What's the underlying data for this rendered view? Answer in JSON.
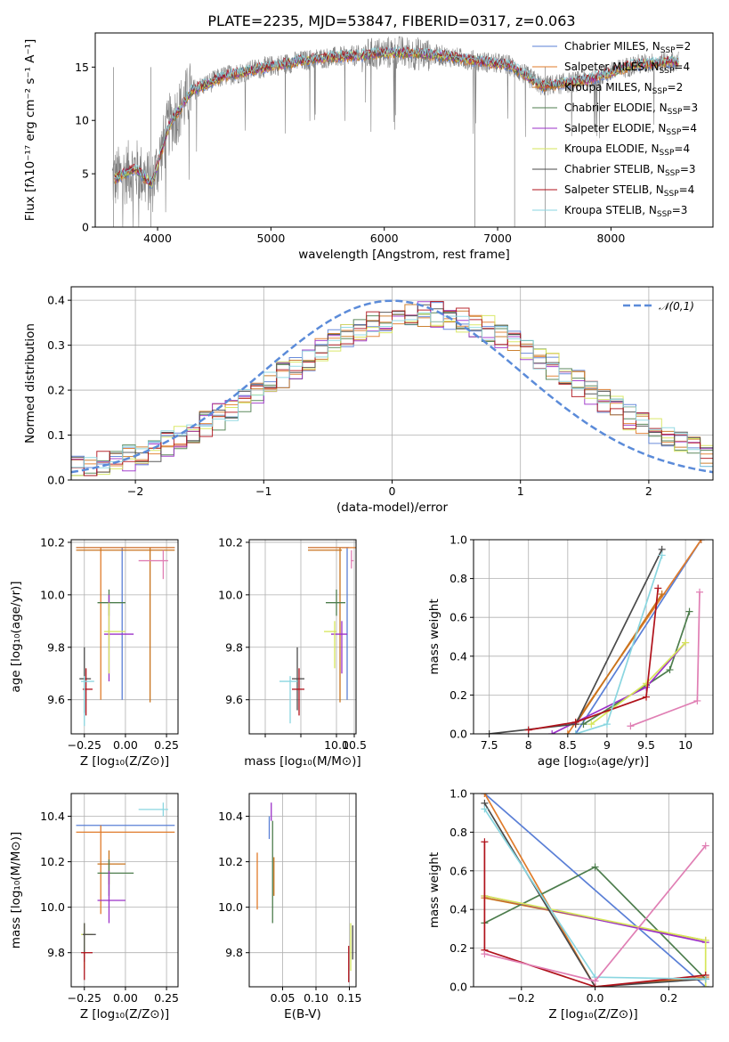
{
  "figure": {
    "title": "PLATE=2235, MJD=53847, FIBERID=0317, z=0.063"
  },
  "models": [
    {
      "name": "Chabrier MILES",
      "nssp": "2",
      "color": "#5a7fd6"
    },
    {
      "name": "Salpeter MILES",
      "nssp": "4",
      "color": "#e07b2a"
    },
    {
      "name": "Kroupa MILES",
      "nssp": "2",
      "color": "#c8731c"
    },
    {
      "name": "Chabrier ELODIE",
      "nssp": "3",
      "color": "#4d7d4d"
    },
    {
      "name": "Salpeter ELODIE",
      "nssp": "4",
      "color": "#9b30c8"
    },
    {
      "name": "Kroupa ELODIE",
      "nssp": "4",
      "color": "#d6e65a"
    },
    {
      "name": "Chabrier STELIB",
      "nssp": "3",
      "color": "#4a4a4a"
    },
    {
      "name": "Salpeter STELIB",
      "nssp": "4",
      "color": "#b0121b"
    },
    {
      "name": "Kroupa STELIB",
      "nssp": "3",
      "color": "#8ad6e0"
    }
  ],
  "chart_data": [
    {
      "id": "spectrum",
      "type": "line",
      "xlabel": "wavelength [Angstrom, rest frame]",
      "ylabel": "Flux [fλ10⁻¹⁷ erg cm⁻² s⁻¹ A⁻¹]",
      "xlim": [
        3450,
        8900
      ],
      "ylim": [
        0,
        18.2
      ],
      "xticks": [
        4000,
        5000,
        6000,
        7000,
        8000
      ],
      "yticks": [
        0,
        5,
        10,
        15
      ],
      "data_color": "#808080",
      "model_anchor": {
        "x": [
          3620,
          3800,
          3950,
          4100,
          4300,
          4600,
          5000,
          5400,
          5800,
          6100,
          6500,
          6800,
          7100,
          7400,
          7800,
          8200,
          8500
        ],
        "y": [
          4.5,
          5.5,
          4.0,
          9.5,
          12.8,
          14.2,
          15.1,
          15.8,
          16.1,
          16.4,
          16.1,
          15.6,
          15.2,
          13.2,
          13.8,
          15.2,
          15.5
        ]
      }
    },
    {
      "id": "residuals",
      "type": "histogram",
      "xlabel": "(data-model)/error",
      "ylabel": "Normed distribution",
      "xlim": [
        -2.5,
        2.5
      ],
      "ylim": [
        0,
        0.43
      ],
      "xticks": [
        -2,
        -1,
        0,
        1,
        2
      ],
      "yticks": [
        0.0,
        0.1,
        0.2,
        0.3,
        0.4
      ],
      "reference": {
        "label": "𝒩(0,1)",
        "mu": 0,
        "sigma": 1,
        "color": "#5b8bd9"
      }
    },
    {
      "id": "age_vs_z",
      "type": "errorbar",
      "xlabel": "Z [log₁₀(Z/Z⊙)]",
      "ylabel": "age  [log₁₀(age/yr)]",
      "xlim": [
        -0.33,
        0.32
      ],
      "ylim": [
        9.47,
        10.21
      ],
      "xticks": [
        -0.25,
        0.0,
        0.25
      ],
      "xticklabels": [
        "−0.25",
        "0.00",
        "0.25"
      ],
      "yticks": [
        9.6,
        9.8,
        10.0,
        10.2
      ],
      "points": [
        {
          "x": -0.02,
          "xlo": -0.3,
          "xhi": 0.3,
          "y": 10.18,
          "ylo": 9.6,
          "yhi": 10.18
        },
        {
          "x": -0.15,
          "xlo": -0.3,
          "xhi": 0.3,
          "y": 10.18,
          "ylo": 9.6,
          "yhi": 10.18
        },
        {
          "x": 0.15,
          "xlo": -0.3,
          "xhi": 0.3,
          "y": 10.17,
          "ylo": 9.59,
          "yhi": 10.18
        },
        {
          "x": -0.1,
          "xlo": -0.17,
          "xhi": 0.0,
          "y": 9.97,
          "ylo": 9.92,
          "yhi": 10.02
        },
        {
          "x": -0.1,
          "xlo": -0.13,
          "xhi": 0.05,
          "y": 9.85,
          "ylo": 9.67,
          "yhi": 10.0
        },
        {
          "x": -0.1,
          "xlo": -0.13,
          "xhi": 0.0,
          "y": 9.86,
          "ylo": 9.7,
          "yhi": 9.97
        },
        {
          "x": -0.25,
          "xlo": -0.28,
          "xhi": -0.21,
          "y": 9.68,
          "ylo": 9.55,
          "yhi": 9.8
        },
        {
          "x": -0.24,
          "xlo": -0.26,
          "xhi": -0.2,
          "y": 9.64,
          "ylo": 9.54,
          "yhi": 9.72
        },
        {
          "x": -0.25,
          "xlo": -0.27,
          "xhi": -0.19,
          "y": 9.67,
          "ylo": 9.5,
          "yhi": 9.69
        },
        {
          "x": 0.23,
          "xlo": 0.08,
          "xhi": 0.26,
          "y": 10.13,
          "ylo": 10.06,
          "yhi": 10.17
        }
      ]
    },
    {
      "id": "age_vs_mass",
      "type": "errorbar",
      "xlabel": "mass [log₁₀(M/M⊙)]",
      "ylabel": "",
      "xlim": [
        7.55,
        10.55
      ],
      "ylim": [
        9.47,
        10.21
      ],
      "xticks": [
        8.0,
        9.0,
        10.0,
        10.5
      ],
      "xticklabels": [
        "",
        "",
        "10.0",
        "10.5"
      ],
      "yticks": [
        9.6,
        9.8,
        10.0,
        10.2
      ],
      "points": [
        {
          "x": 10.3,
          "xlo": 9.2,
          "xhi": 10.35,
          "y": 10.18,
          "ylo": 9.6,
          "yhi": 10.18
        },
        {
          "x": 10.6,
          "xlo": 9.2,
          "xhi": 10.65,
          "y": 10.18,
          "ylo": 9.6,
          "yhi": 10.18
        },
        {
          "x": 10.1,
          "xlo": 9.2,
          "xhi": 10.15,
          "y": 10.17,
          "ylo": 9.59,
          "yhi": 10.18
        },
        {
          "x": 10.0,
          "xlo": 9.7,
          "xhi": 10.25,
          "y": 9.97,
          "ylo": 9.92,
          "yhi": 10.02
        },
        {
          "x": 10.15,
          "xlo": 9.85,
          "xhi": 10.3,
          "y": 9.85,
          "ylo": 9.7,
          "yhi": 9.9
        },
        {
          "x": 9.95,
          "xlo": 9.65,
          "xhi": 10.0,
          "y": 9.86,
          "ylo": 9.72,
          "yhi": 9.9
        },
        {
          "x": 8.9,
          "xlo": 8.75,
          "xhi": 9.1,
          "y": 9.68,
          "ylo": 9.56,
          "yhi": 9.8
        },
        {
          "x": 8.95,
          "xlo": 8.75,
          "xhi": 9.1,
          "y": 9.64,
          "ylo": 9.54,
          "yhi": 9.72
        },
        {
          "x": 8.7,
          "xlo": 8.4,
          "xhi": 8.9,
          "y": 9.67,
          "ylo": 9.51,
          "yhi": 9.69
        },
        {
          "x": 10.42,
          "xlo": 10.4,
          "xhi": 10.48,
          "y": 10.13,
          "ylo": 10.1,
          "yhi": 10.17
        }
      ]
    },
    {
      "id": "weight_vs_age",
      "type": "line",
      "xlabel": "age  [log₁₀(age/yr)]",
      "ylabel": "mass weight",
      "xlim": [
        7.3,
        10.35
      ],
      "ylim": [
        0,
        1.0
      ],
      "xticks": [
        7.5,
        8.0,
        8.5,
        9.0,
        9.5,
        10.0
      ],
      "yticks": [
        0.0,
        0.2,
        0.4,
        0.6,
        0.8,
        1.0
      ],
      "series": [
        {
          "model": 0,
          "x": [
            8.6,
            10.2
          ],
          "y": [
            0.0,
            1.0
          ]
        },
        {
          "model": 1,
          "x": [
            8.5,
            10.2
          ],
          "y": [
            0.0,
            1.0
          ]
        },
        {
          "model": 2,
          "x": [
            8.6,
            9.7
          ],
          "y": [
            0.05,
            0.72
          ]
        },
        {
          "model": 3,
          "x": [
            8.7,
            9.5,
            9.8,
            10.05
          ],
          "y": [
            0.05,
            0.25,
            0.33,
            0.63
          ]
        },
        {
          "model": 4,
          "x": [
            8.3,
            9.5,
            10.0
          ],
          "y": [
            0.0,
            0.24,
            0.47
          ]
        },
        {
          "model": 5,
          "x": [
            8.8,
            9.5,
            10.0
          ],
          "y": [
            0.05,
            0.26,
            0.47
          ]
        },
        {
          "model": 6,
          "x": [
            7.5,
            8.6,
            9.7
          ],
          "y": [
            0.0,
            0.05,
            0.95
          ]
        },
        {
          "model": 7,
          "x": [
            8.0,
            8.6,
            9.5,
            9.65
          ],
          "y": [
            0.02,
            0.06,
            0.19,
            0.75
          ]
        },
        {
          "model": 8,
          "x": [
            8.6,
            9.0,
            9.7
          ],
          "y": [
            0.0,
            0.05,
            0.92
          ]
        },
        {
          "model": 9,
          "x": [
            9.3,
            10.15,
            10.18
          ],
          "y": [
            0.04,
            0.17,
            0.73
          ]
        }
      ]
    },
    {
      "id": "mass_vs_z",
      "type": "errorbar",
      "xlabel": "Z [log₁₀(Z/Z⊙)]",
      "ylabel": "mass [log₁₀(M/M⊙)]",
      "xlim": [
        -0.33,
        0.32
      ],
      "ylim": [
        9.65,
        10.5
      ],
      "xticks": [
        -0.25,
        0.0,
        0.25
      ],
      "xticklabels": [
        "−0.25",
        "0.00",
        "0.25"
      ],
      "yticks": [
        9.8,
        10.0,
        10.2,
        10.4
      ],
      "points": [
        {
          "x": -0.02,
          "xlo": -0.3,
          "xhi": 0.3,
          "y": 10.36,
          "ylo": 10.36,
          "yhi": 10.36
        },
        {
          "x": -0.15,
          "xlo": -0.3,
          "xhi": 0.3,
          "y": 10.33,
          "ylo": 9.97,
          "yhi": 10.36
        },
        {
          "x": -0.1,
          "xlo": -0.17,
          "xhi": 0.0,
          "y": 10.19,
          "ylo": 10.1,
          "yhi": 10.25
        },
        {
          "x": -0.1,
          "xlo": -0.17,
          "xhi": 0.05,
          "y": 10.15,
          "ylo": 10.05,
          "yhi": 10.21
        },
        {
          "x": -0.1,
          "xlo": -0.17,
          "xhi": 0.0,
          "y": 10.03,
          "ylo": 9.93,
          "yhi": 10.16
        },
        {
          "x": -0.25,
          "xlo": -0.27,
          "xhi": -0.2,
          "y": 9.88,
          "ylo": 9.73,
          "yhi": 9.93
        },
        {
          "x": -0.25,
          "xlo": -0.26,
          "xhi": -0.18,
          "y": 9.88,
          "ylo": 9.76,
          "yhi": 9.93
        },
        {
          "x": -0.25,
          "xlo": -0.27,
          "xhi": -0.2,
          "y": 9.8,
          "ylo": 9.68,
          "yhi": 9.8
        },
        {
          "x": 0.23,
          "xlo": 0.08,
          "xhi": 0.26,
          "y": 10.43,
          "ylo": 10.4,
          "yhi": 10.46
        }
      ]
    },
    {
      "id": "mass_vs_ebv",
      "type": "errorbar",
      "xlabel": "E(B-V)",
      "ylabel": "",
      "xlim": [
        0.0,
        0.16
      ],
      "ylim": [
        9.65,
        10.5
      ],
      "xticks": [
        0.05,
        0.1,
        0.15
      ],
      "xticklabels": [
        "0.05",
        "0.10",
        "0.15"
      ],
      "yticks": [
        9.8,
        10.0,
        10.2,
        10.4
      ],
      "points": [
        {
          "x": 0.03,
          "y": 10.33,
          "ylo": 10.3,
          "yhi": 10.4
        },
        {
          "x": 0.012,
          "y": 10.1,
          "ylo": 9.99,
          "yhi": 10.24
        },
        {
          "x": 0.037,
          "y": 10.15,
          "ylo": 10.05,
          "yhi": 10.22
        },
        {
          "x": 0.035,
          "y": 10.13,
          "ylo": 9.93,
          "yhi": 10.38
        },
        {
          "x": 0.033,
          "y": 10.42,
          "ylo": 10.38,
          "yhi": 10.46
        },
        {
          "x": 0.152,
          "y": 9.82,
          "ylo": 9.72,
          "yhi": 9.93
        },
        {
          "x": 0.155,
          "y": 9.82,
          "ylo": 9.77,
          "yhi": 9.92
        },
        {
          "x": 0.149,
          "y": 9.75,
          "ylo": 9.67,
          "yhi": 9.83
        }
      ]
    },
    {
      "id": "weight_vs_z",
      "type": "line",
      "xlabel": "Z [log₁₀(Z/Z⊙)]",
      "ylabel": "mass weight",
      "xlim": [
        -0.33,
        0.32
      ],
      "ylim": [
        0,
        1.0
      ],
      "xticks": [
        -0.2,
        0.0,
        0.2
      ],
      "xticklabels": [
        "−0.2",
        "0.0",
        "0.2"
      ],
      "yticks": [
        0.0,
        0.2,
        0.4,
        0.6,
        0.8,
        1.0
      ],
      "series": [
        {
          "model": 0,
          "x": [
            -0.3,
            0.3
          ],
          "y": [
            1.0,
            0.0
          ]
        },
        {
          "model": 1,
          "x": [
            -0.3,
            0.0,
            0.3
          ],
          "y": [
            1.0,
            0.0,
            0.05
          ]
        },
        {
          "model": 2,
          "x": [
            -0.3,
            0.3
          ],
          "y": [
            0.46,
            0.24
          ]
        },
        {
          "model": 3,
          "x": [
            -0.3,
            0.0,
            0.3
          ],
          "y": [
            0.33,
            0.62,
            0.04
          ]
        },
        {
          "model": 4,
          "x": [
            -0.3,
            0.3
          ],
          "y": [
            0.47,
            0.23
          ]
        },
        {
          "model": 5,
          "x": [
            -0.3,
            0.3,
            0.3
          ],
          "y": [
            0.47,
            0.24,
            0.0
          ]
        },
        {
          "model": 6,
          "x": [
            -0.3,
            0.0,
            0.3
          ],
          "y": [
            0.95,
            0.0,
            0.04
          ]
        },
        {
          "model": 7,
          "x": [
            -0.3,
            -0.3,
            0.0,
            0.3
          ],
          "y": [
            0.75,
            0.19,
            0.0,
            0.06
          ]
        },
        {
          "model": 8,
          "x": [
            -0.3,
            0.0,
            0.3
          ],
          "y": [
            0.92,
            0.05,
            0.04
          ]
        },
        {
          "model": 9,
          "x": [
            -0.3,
            0.0,
            0.3
          ],
          "y": [
            0.17,
            0.03,
            0.73
          ]
        }
      ]
    }
  ],
  "extra_colors": {
    "pink": "#e07fb4"
  }
}
